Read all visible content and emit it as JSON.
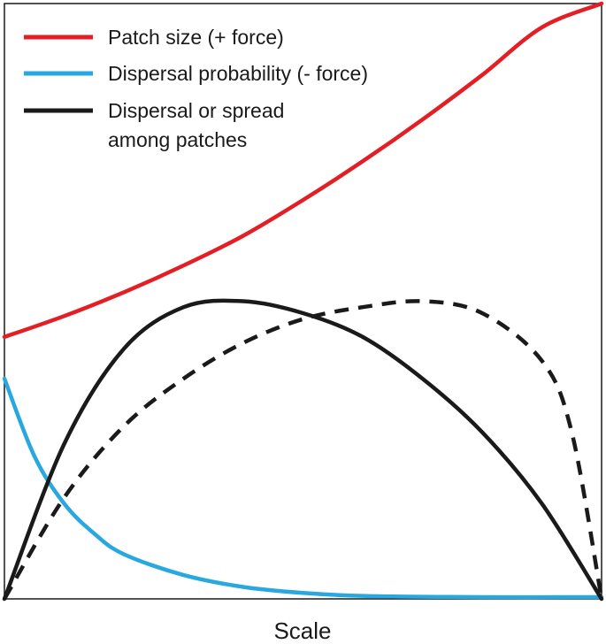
{
  "chart_data": {
    "type": "line",
    "title": "",
    "xlabel": "Scale",
    "ylabel": "",
    "xlim": [
      0,
      1
    ],
    "ylim": [
      0,
      1
    ],
    "grid": false,
    "legend_placement": "top-left",
    "series": [
      {
        "name": "Patch size (+ force)",
        "color": "#e31e24",
        "style": "solid",
        "x": [
          0,
          0.1,
          0.2,
          0.3,
          0.4,
          0.5,
          0.6,
          0.7,
          0.8,
          0.9,
          1.0
        ],
        "y": [
          0.44,
          0.475,
          0.515,
          0.56,
          0.61,
          0.67,
          0.735,
          0.805,
          0.88,
          0.96,
          1.0
        ]
      },
      {
        "name": "Dispersal probability (- force)",
        "color": "#29a8df",
        "style": "solid",
        "x": [
          0,
          0.05,
          0.1,
          0.15,
          0.2,
          0.3,
          0.4,
          0.5,
          0.6,
          0.8,
          1.0
        ],
        "y": [
          0.37,
          0.24,
          0.16,
          0.11,
          0.075,
          0.04,
          0.02,
          0.01,
          0.005,
          0.003,
          0.003
        ]
      },
      {
        "name": "Dispersal or spread among patches",
        "color": "#1a1a1a",
        "style": "solid",
        "x": [
          0,
          0.1,
          0.2,
          0.3,
          0.4,
          0.5,
          0.6,
          0.7,
          0.8,
          0.9,
          1.0
        ],
        "y": [
          0,
          0.26,
          0.42,
          0.49,
          0.5,
          0.48,
          0.44,
          0.37,
          0.28,
          0.16,
          0
        ]
      },
      {
        "name": "",
        "color": "#1a1a1a",
        "style": "dashed",
        "x": [
          0,
          0.1,
          0.2,
          0.3,
          0.4,
          0.5,
          0.6,
          0.7,
          0.8,
          0.9,
          0.95,
          1.0
        ],
        "y": [
          0,
          0.17,
          0.29,
          0.37,
          0.43,
          0.47,
          0.49,
          0.5,
          0.48,
          0.4,
          0.28,
          0
        ]
      }
    ],
    "legend": [
      {
        "label": "Patch size (+ force)",
        "color": "#e31e24"
      },
      {
        "label": "Dispersal probability (- force)",
        "color": "#29a8df"
      },
      {
        "label_line1": "Dispersal or spread",
        "label_line2": "among patches",
        "color": "#1a1a1a"
      }
    ]
  }
}
